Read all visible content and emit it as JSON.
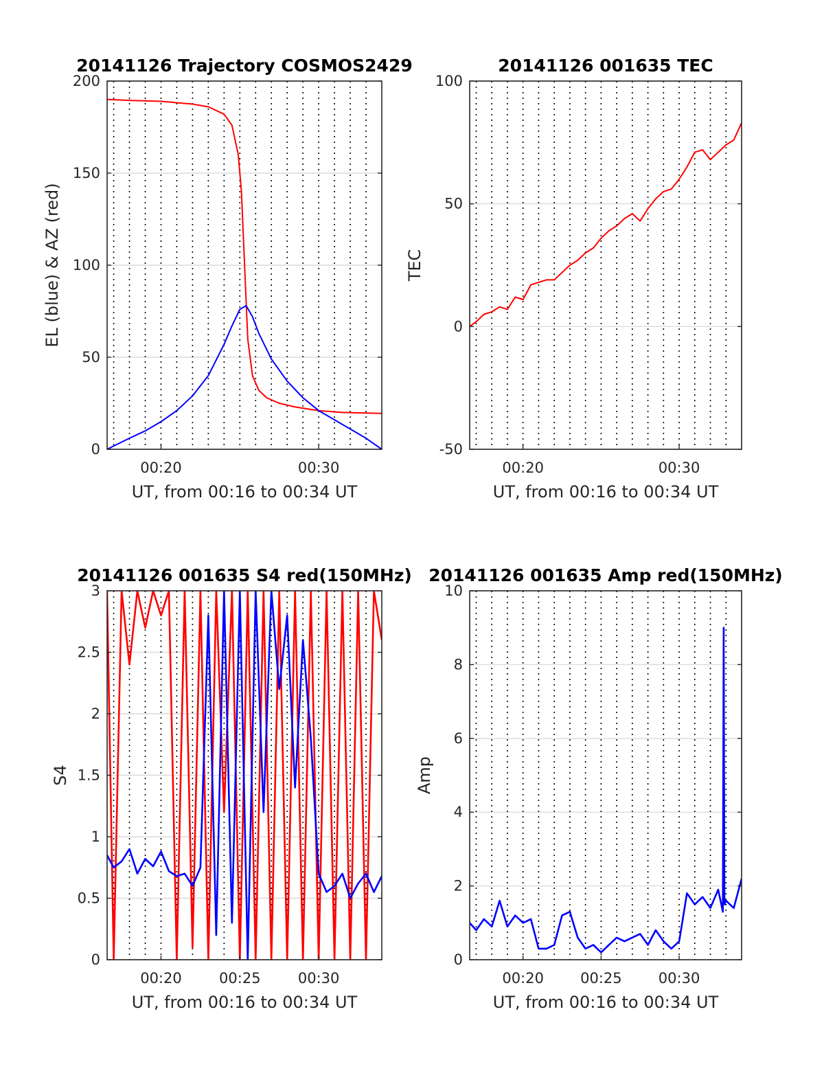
{
  "chart_data": [
    {
      "type": "line",
      "title": "20141126 Trajectory COSMOS2429",
      "xlabel": "UT, from 00:16 to 00:34 UT",
      "ylabel": "EL (blue) & AZ (red)",
      "xlim": [
        "00:16:35",
        "00:34:00"
      ],
      "ylim": [
        0,
        200
      ],
      "xticks": [
        "00:20",
        "00:30"
      ],
      "yticks": [
        0,
        50,
        100,
        150,
        200
      ],
      "grid": "dotted vertical every 1 min, light horizontal at y ticks",
      "series": [
        {
          "color": "#ff0000",
          "x": [
            16.58,
            18,
            20,
            22,
            23,
            24,
            24.5,
            24.9,
            25.1,
            25.3,
            25.5,
            25.8,
            26.2,
            26.7,
            27.5,
            28.5,
            30,
            31.5,
            34
          ],
          "y": [
            190,
            189.5,
            189,
            187.5,
            186,
            182,
            176,
            160,
            140,
            100,
            60,
            40,
            32,
            28,
            25,
            23,
            21,
            20,
            19.5
          ]
        },
        {
          "color": "#0000ff",
          "x": [
            16.58,
            18,
            19,
            20,
            21,
            22,
            23,
            24,
            24.5,
            25,
            25.4,
            25.8,
            26.2,
            27,
            28,
            29,
            30,
            31,
            32,
            33,
            34
          ],
          "y": [
            0,
            6,
            10,
            15,
            21,
            29,
            40,
            57,
            67,
            76,
            78,
            72,
            63,
            49,
            37,
            28,
            21,
            16,
            11,
            6,
            0
          ]
        }
      ]
    },
    {
      "type": "line",
      "title": "20141126 001635 TEC",
      "xlabel": "UT, from 00:16 to 00:34 UT",
      "ylabel": "TEC",
      "xlim": [
        "00:16:35",
        "00:34:00"
      ],
      "ylim": [
        -50,
        100
      ],
      "xticks": [
        "00:20",
        "00:30"
      ],
      "yticks": [
        -50,
        0,
        50,
        100
      ],
      "grid": "dotted vertical every 1 min, light horizontal at y ticks",
      "series": [
        {
          "color": "#ff0000",
          "x": [
            16.58,
            17,
            17.5,
            18,
            18.5,
            19,
            19.5,
            20,
            20.5,
            21,
            21.5,
            22,
            22.5,
            23,
            23.5,
            24,
            24.5,
            25,
            25.5,
            26,
            26.5,
            27,
            27.5,
            28,
            28.5,
            29,
            29.5,
            30,
            30.5,
            31,
            31.5,
            32,
            32.5,
            33,
            33.5,
            34
          ],
          "y": [
            0,
            2,
            5,
            6,
            8,
            7,
            12,
            11,
            17,
            18,
            19,
            19,
            22,
            25,
            27,
            30,
            32,
            36,
            39,
            41,
            44,
            46,
            43,
            48,
            52,
            55,
            56,
            60,
            65,
            71,
            72,
            68,
            71,
            74,
            76,
            83
          ]
        }
      ]
    },
    {
      "type": "line",
      "title": "20141126 001635 S4 red(150MHz)",
      "xlabel": "UT, from 00:16 to 00:34 UT",
      "ylabel": "S4",
      "xlim": [
        "00:16:35",
        "00:34:00"
      ],
      "ylim": [
        0,
        3
      ],
      "xticks": [
        "00:20",
        "00:25",
        "00:30"
      ],
      "yticks": [
        0,
        0.5,
        1,
        1.5,
        2,
        2.5,
        3
      ],
      "grid": "dotted vertical every 1 min, light horizontal at y ticks",
      "series": [
        {
          "color": "#ff0000",
          "x": [
            16.58,
            17,
            17.5,
            18,
            18.5,
            19,
            19.5,
            20,
            20.5,
            21,
            21.5,
            22,
            22.5,
            23,
            23.5,
            24,
            24.5,
            25,
            25.5,
            26,
            26.5,
            27,
            27.5,
            28,
            28.5,
            29,
            29.5,
            30,
            30.5,
            31,
            31.5,
            32,
            32.5,
            33,
            33.5,
            34
          ],
          "y": [
            3,
            0,
            3,
            2.4,
            3,
            2.7,
            3,
            2.8,
            3,
            0,
            3,
            0.1,
            3,
            0,
            3,
            1.2,
            3,
            0,
            3,
            0,
            3,
            0,
            3,
            0,
            3,
            0,
            3,
            0,
            3,
            0,
            3,
            0,
            3,
            0,
            3,
            2.6
          ]
        },
        {
          "color": "#0000ff",
          "x": [
            16.58,
            17,
            17.5,
            18,
            18.5,
            19,
            19.5,
            20,
            20.5,
            21,
            21.5,
            22,
            22.5,
            23,
            23.5,
            24,
            24.5,
            25,
            25.5,
            26,
            26.5,
            27,
            27.5,
            28,
            28.5,
            29,
            29.5,
            30,
            30.5,
            31,
            31.5,
            32,
            32.5,
            33,
            33.5,
            34
          ],
          "y": [
            0.85,
            0.75,
            0.8,
            0.9,
            0.7,
            0.82,
            0.76,
            0.88,
            0.72,
            0.68,
            0.7,
            0.6,
            0.75,
            2.8,
            0.2,
            3,
            0.3,
            3,
            0,
            3,
            1.2,
            3,
            2.2,
            2.8,
            1.4,
            2.6,
            1.8,
            0.7,
            0.55,
            0.6,
            0.7,
            0.5,
            0.62,
            0.7,
            0.55,
            0.68
          ]
        }
      ]
    },
    {
      "type": "line",
      "title": "20141126 001635 Amp red(150MHz)",
      "xlabel": "UT, from 00:16 to 00:34 UT",
      "ylabel": "Amp",
      "xlim": [
        "00:16:35",
        "00:34:00"
      ],
      "ylim": [
        0,
        10
      ],
      "xticks": [
        "00:20",
        "00:25",
        "00:30"
      ],
      "yticks": [
        0,
        2,
        4,
        6,
        8,
        10
      ],
      "grid": "dotted vertical every 1 min, light horizontal at y ticks",
      "series": [
        {
          "color": "#0000ff",
          "x": [
            16.58,
            17,
            17.5,
            18,
            18.5,
            19,
            19.5,
            20,
            20.5,
            21,
            21.5,
            22,
            22.5,
            23,
            23.5,
            24,
            24.5,
            25,
            25.5,
            26,
            26.5,
            27,
            27.5,
            28,
            28.5,
            29,
            29.5,
            30,
            30.5,
            31,
            31.5,
            32,
            32.5,
            32.8,
            32.85,
            32.9,
            33,
            33.5,
            34
          ],
          "y": [
            1.0,
            0.8,
            1.1,
            0.9,
            1.6,
            0.9,
            1.2,
            1.0,
            1.1,
            0.3,
            0.3,
            0.4,
            1.2,
            1.3,
            0.6,
            0.3,
            0.4,
            0.2,
            0.4,
            0.6,
            0.5,
            0.6,
            0.7,
            0.4,
            0.8,
            0.5,
            0.3,
            0.5,
            1.8,
            1.5,
            1.7,
            1.4,
            1.9,
            1.3,
            9.0,
            1.5,
            1.6,
            1.4,
            2.2
          ]
        }
      ]
    }
  ]
}
